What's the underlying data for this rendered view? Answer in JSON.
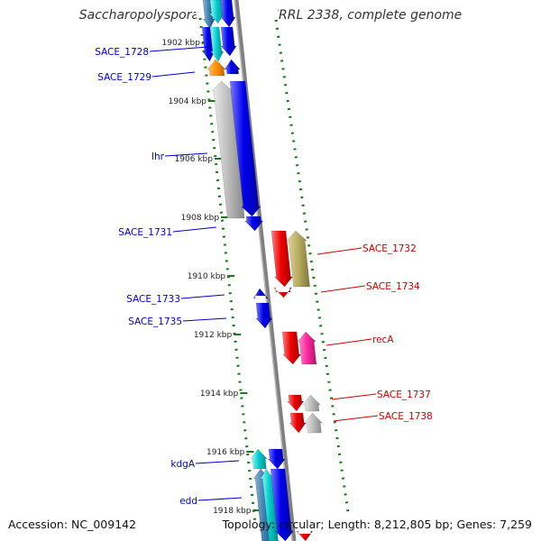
{
  "title": "Saccharopolyspora erythraea NRRL 2338, complete genome",
  "footer": {
    "accession": "Accession: NC_009142",
    "topology": "Topology: circular; Length: 8,212,805 bp; Genes: 7,259"
  },
  "scale": {
    "unit": "kbp",
    "ticks": [
      {
        "label": "1902 kbp",
        "value": 1902
      },
      {
        "label": "1904 kbp",
        "value": 1904
      },
      {
        "label": "1906 kbp",
        "value": 1906
      },
      {
        "label": "1908 kbp",
        "value": 1908
      },
      {
        "label": "1910 kbp",
        "value": 1910
      },
      {
        "label": "1912 kbp",
        "value": 1912
      },
      {
        "label": "1914 kbp",
        "value": 1914
      },
      {
        "label": "1916 kbp",
        "value": 1916
      },
      {
        "label": "1918 kbp",
        "value": 1918
      }
    ]
  },
  "colors": {
    "forward_label": "#0000cc",
    "reverse_label": "#cc0000",
    "backbone": "#888888",
    "tick": "#1a7a1a"
  },
  "genes": [
    {
      "name": "SACE_1728",
      "strand": "forward",
      "label": "SACE_1728"
    },
    {
      "name": "SACE_1729",
      "strand": "forward",
      "label": "SACE_1729"
    },
    {
      "name": "lhr",
      "strand": "forward",
      "label": "lhr"
    },
    {
      "name": "SACE_1731",
      "strand": "forward",
      "label": "SACE_1731"
    },
    {
      "name": "SACE_1732",
      "strand": "reverse",
      "label": "SACE_1732"
    },
    {
      "name": "SACE_1733",
      "strand": "forward",
      "label": "SACE_1733"
    },
    {
      "name": "SACE_1734",
      "strand": "reverse",
      "label": "SACE_1734"
    },
    {
      "name": "SACE_1735",
      "strand": "forward",
      "label": "SACE_1735"
    },
    {
      "name": "recA",
      "strand": "reverse",
      "label": "recA"
    },
    {
      "name": "SACE_1737",
      "strand": "reverse",
      "label": "SACE_1737"
    },
    {
      "name": "SACE_1738",
      "strand": "reverse",
      "label": "SACE_1738"
    },
    {
      "name": "kdgA",
      "strand": "forward",
      "label": "kdgA"
    },
    {
      "name": "edd",
      "strand": "forward",
      "label": "edd"
    }
  ]
}
